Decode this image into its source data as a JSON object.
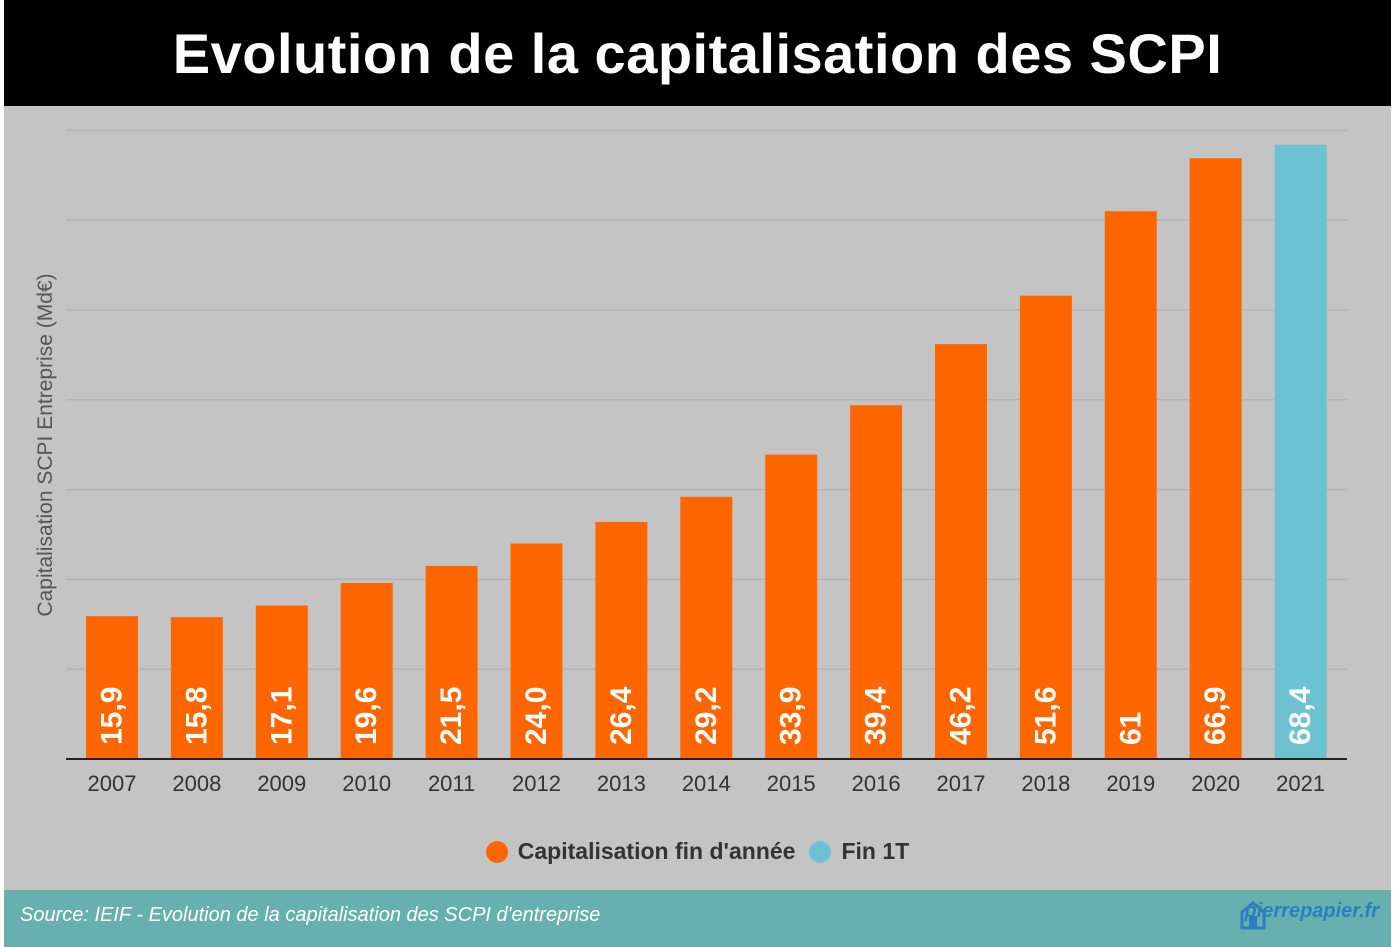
{
  "header": {
    "title": "Evolution de la capitalisation des SCPI"
  },
  "chart_data": {
    "type": "bar",
    "title": "Evolution de la capitalisation des SCPI",
    "xlabel": "",
    "ylabel": "Capitalisation SCPI Entreprise (Md€)",
    "categories": [
      "2007",
      "2008",
      "2009",
      "2010",
      "2011",
      "2012",
      "2013",
      "2014",
      "2015",
      "2016",
      "2017",
      "2018",
      "2019",
      "2020",
      "2021"
    ],
    "values": [
      15.9,
      15.8,
      17.1,
      19.6,
      21.5,
      24.0,
      26.4,
      29.2,
      33.9,
      39.4,
      46.2,
      51.6,
      61,
      66.9,
      68.4
    ],
    "value_labels": [
      "15,9",
      "15,8",
      "17,1",
      "19,6",
      "21,5",
      "24,0",
      "26,4",
      "29,2",
      "33,9",
      "39,4",
      "46,2",
      "51,6",
      "61",
      "66,9",
      "68,4"
    ],
    "series_index": [
      0,
      0,
      0,
      0,
      0,
      0,
      0,
      0,
      0,
      0,
      0,
      0,
      0,
      0,
      1
    ],
    "ylim": [
      0,
      70
    ],
    "grid": true,
    "legend_position": "bottom-center",
    "legend": [
      {
        "name": "Capitalisation fin d'année",
        "color": "#ff6600"
      },
      {
        "name": "Fin 1T",
        "color": "#6cc2d0"
      }
    ]
  },
  "footer": {
    "source": "Source:  IEIF -  Evolution de la capitalisation des SCPI d'entreprise",
    "logo_text": "pierrepapier.fr"
  },
  "icons": {
    "logo": "house-icon"
  }
}
